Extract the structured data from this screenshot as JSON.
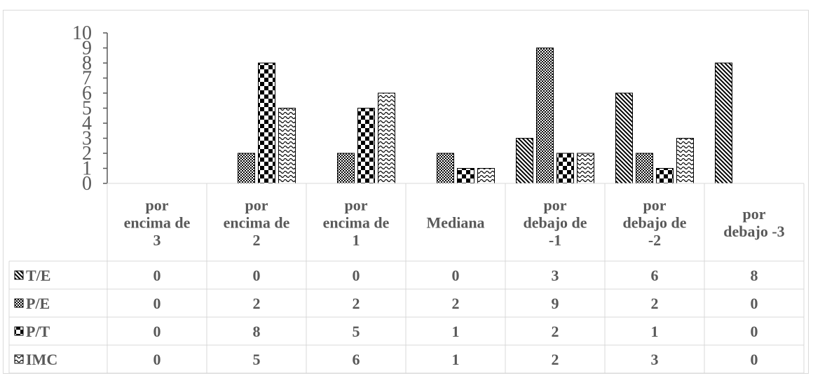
{
  "chart_data": {
    "type": "bar",
    "title": "",
    "xlabel": "",
    "ylabel": "",
    "ylim": [
      0,
      10
    ],
    "yticks": [
      0,
      1,
      2,
      3,
      4,
      5,
      6,
      7,
      8,
      9,
      10
    ],
    "grid": false,
    "legend": "data-table",
    "categories": [
      [
        "por",
        "encima de",
        "3"
      ],
      [
        "por",
        "encima de",
        "2"
      ],
      [
        "por",
        "encima de",
        "1"
      ],
      [
        "Mediana"
      ],
      [
        "por",
        "debajo de",
        "-1"
      ],
      [
        "por",
        "debajo de",
        "-2"
      ],
      [
        "por",
        "debajo  -3"
      ]
    ],
    "series": [
      {
        "name": "T/E",
        "pattern": "diag",
        "values": [
          0,
          0,
          0,
          0,
          3,
          6,
          8
        ]
      },
      {
        "name": "P/E",
        "pattern": "dots",
        "values": [
          0,
          2,
          2,
          2,
          9,
          2,
          0
        ]
      },
      {
        "name": "P/T",
        "pattern": "checker",
        "values": [
          0,
          8,
          5,
          1,
          2,
          1,
          0
        ]
      },
      {
        "name": "IMC",
        "pattern": "wave",
        "values": [
          0,
          5,
          6,
          1,
          2,
          3,
          0
        ]
      }
    ]
  }
}
